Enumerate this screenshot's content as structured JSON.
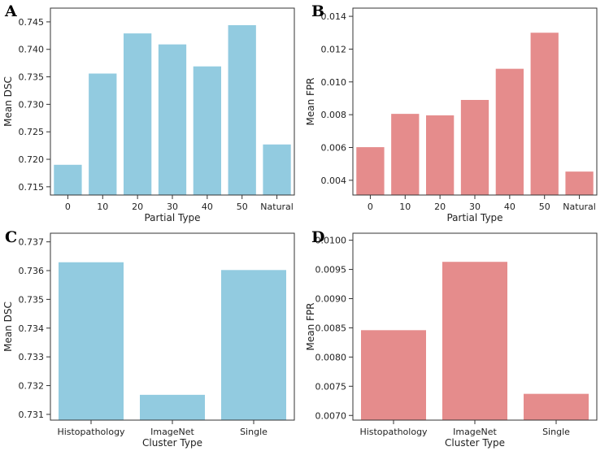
{
  "chart_data": [
    {
      "id": "A",
      "panel_label": "A",
      "type": "bar",
      "xlabel": "Partial Type",
      "ylabel": "Mean DSC",
      "categories": [
        "0",
        "10",
        "20",
        "30",
        "40",
        "50",
        "Natural"
      ],
      "values": [
        0.719,
        0.7356,
        0.7429,
        0.7409,
        0.7369,
        0.7444,
        0.7227
      ],
      "ylim": [
        0.7135,
        0.7475
      ],
      "yticks": [
        0.715,
        0.72,
        0.725,
        0.73,
        0.735,
        0.74,
        0.745
      ],
      "ytick_labels": [
        "0.715",
        "0.720",
        "0.725",
        "0.730",
        "0.735",
        "0.740",
        "0.745"
      ],
      "color": "#92cbe0"
    },
    {
      "id": "B",
      "panel_label": "B",
      "type": "bar",
      "xlabel": "Partial Type",
      "ylabel": "Mean FPR",
      "categories": [
        "0",
        "10",
        "20",
        "30",
        "40",
        "50",
        "Natural"
      ],
      "values": [
        0.00602,
        0.00805,
        0.00796,
        0.0089,
        0.0108,
        0.013,
        0.00453
      ],
      "ylim": [
        0.0031,
        0.0145
      ],
      "yticks": [
        0.004,
        0.006,
        0.008,
        0.01,
        0.012,
        0.014
      ],
      "ytick_labels": [
        "0.004",
        "0.006",
        "0.008",
        "0.010",
        "0.012",
        "0.014"
      ],
      "color": "#e58c8c"
    },
    {
      "id": "C",
      "panel_label": "C",
      "type": "bar",
      "xlabel": "Cluster Type",
      "ylabel": "Mean DSC",
      "categories": [
        "Histopathology",
        "ImageNet",
        "Single"
      ],
      "values": [
        0.73629,
        0.73168,
        0.73602
      ],
      "ylim": [
        0.7308,
        0.7373
      ],
      "yticks": [
        0.731,
        0.732,
        0.733,
        0.734,
        0.735,
        0.736,
        0.737
      ],
      "ytick_labels": [
        "0.731",
        "0.732",
        "0.733",
        "0.734",
        "0.735",
        "0.736",
        "0.737"
      ],
      "color": "#92cbe0"
    },
    {
      "id": "D",
      "panel_label": "D",
      "type": "bar",
      "xlabel": "Cluster Type",
      "ylabel": "Mean FPR",
      "categories": [
        "Histopathology",
        "ImageNet",
        "Single"
      ],
      "values": [
        0.00846,
        0.00963,
        0.00737
      ],
      "ylim": [
        0.00692,
        0.01012
      ],
      "yticks": [
        0.007,
        0.0075,
        0.008,
        0.0085,
        0.009,
        0.0095,
        0.01
      ],
      "ytick_labels": [
        "0.0070",
        "0.0075",
        "0.0080",
        "0.0085",
        "0.0090",
        "0.0095",
        "0.0100"
      ],
      "color": "#e58c8c"
    }
  ]
}
